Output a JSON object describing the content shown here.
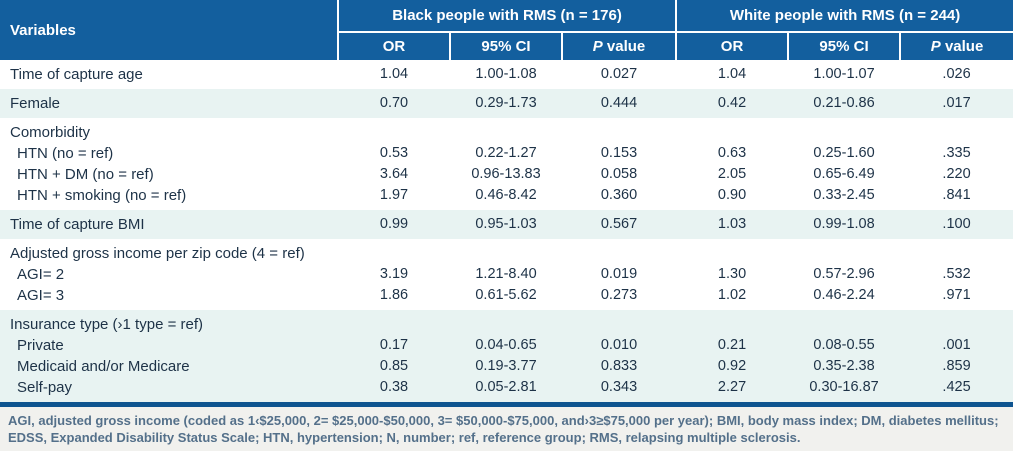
{
  "table": {
    "variables_header": "Variables",
    "groups": [
      {
        "label": "Black people with RMS (n = 176)",
        "columns": [
          "OR",
          "95% CI",
          "P value"
        ]
      },
      {
        "label": "White people with RMS (n = 244)",
        "columns": [
          "OR",
          "95% CI",
          "P value"
        ]
      }
    ],
    "bands": [
      {
        "shade": false,
        "rows": [
          {
            "label": "Time of capture age",
            "values": [
              "1.04",
              "1.00-1.08",
              "0.027",
              "1.04",
              "1.00-1.07",
              ".026"
            ]
          }
        ]
      },
      {
        "shade": true,
        "rows": [
          {
            "label": "Female",
            "values": [
              "0.70",
              "0.29-1.73",
              "0.444",
              "0.42",
              "0.21-0.86",
              ".017"
            ]
          }
        ]
      },
      {
        "shade": false,
        "rows": [
          {
            "label": "Comorbidity",
            "group_header": true
          },
          {
            "label": "HTN (no = ref)",
            "indent": true,
            "values": [
              "0.53",
              "0.22-1.27",
              "0.153",
              "0.63",
              "0.25-1.60",
              ".335"
            ]
          },
          {
            "label": "HTN + DM (no = ref)",
            "indent": true,
            "values": [
              "3.64",
              "0.96-13.83",
              "0.058",
              "2.05",
              "0.65-6.49",
              ".220"
            ]
          },
          {
            "label": "HTN + smoking (no = ref)",
            "indent": true,
            "values": [
              "1.97",
              "0.46-8.42",
              "0.360",
              "0.90",
              "0.33-2.45",
              ".841"
            ]
          }
        ]
      },
      {
        "shade": true,
        "rows": [
          {
            "label": "Time of capture BMI",
            "values": [
              "0.99",
              "0.95-1.03",
              "0.567",
              "1.03",
              "0.99-1.08",
              ".100"
            ]
          }
        ]
      },
      {
        "shade": false,
        "rows": [
          {
            "label": "Adjusted gross income per zip code (4 = ref)",
            "group_header": true
          },
          {
            "label": "AGI= 2",
            "indent": true,
            "values": [
              "3.19",
              "1.21-8.40",
              "0.019",
              "1.30",
              "0.57-2.96",
              ".532"
            ]
          },
          {
            "label": "AGI= 3",
            "indent": true,
            "values": [
              "1.86",
              "0.61-5.62",
              "0.273",
              "1.02",
              "0.46-2.24",
              ".971"
            ]
          }
        ]
      },
      {
        "shade": true,
        "rows": [
          {
            "label": "Insurance type (›1 type = ref)",
            "group_header": true
          },
          {
            "label": "Private",
            "indent": true,
            "values": [
              "0.17",
              "0.04-0.65",
              "0.010",
              "0.21",
              "0.08-0.55",
              ".001"
            ]
          },
          {
            "label": "Medicaid and/or Medicare",
            "indent": true,
            "values": [
              "0.85",
              "0.19-3.77",
              "0.833",
              "0.92",
              "0.35-2.38",
              ".859"
            ]
          },
          {
            "label": "Self-pay",
            "indent": true,
            "values": [
              "0.38",
              "0.05-2.81",
              "0.343",
              "2.27",
              "0.30-16.87",
              ".425"
            ]
          }
        ]
      }
    ]
  },
  "footnote": {
    "line1": "AGI, adjusted gross income (coded as 1‹$25,000, 2= $25,000-$50,000, 3= $50,000-$75,000, and›3≥$75,000 per year); BMI, body mass index; DM, diabetes mellitus;",
    "line2": "EDSS, Expanded Disability Status Scale; HTN, hypertension; N, number; ref, reference group; RMS, relapsing multiple sclerosis."
  },
  "colors": {
    "header_blue": "#135f9e",
    "divider_blue": "#0e5490",
    "shade_row": "#e8f3f2",
    "body_text": "#1d3247",
    "footnote_text": "#54708a",
    "footnote_bg": "#f1f1ee"
  }
}
